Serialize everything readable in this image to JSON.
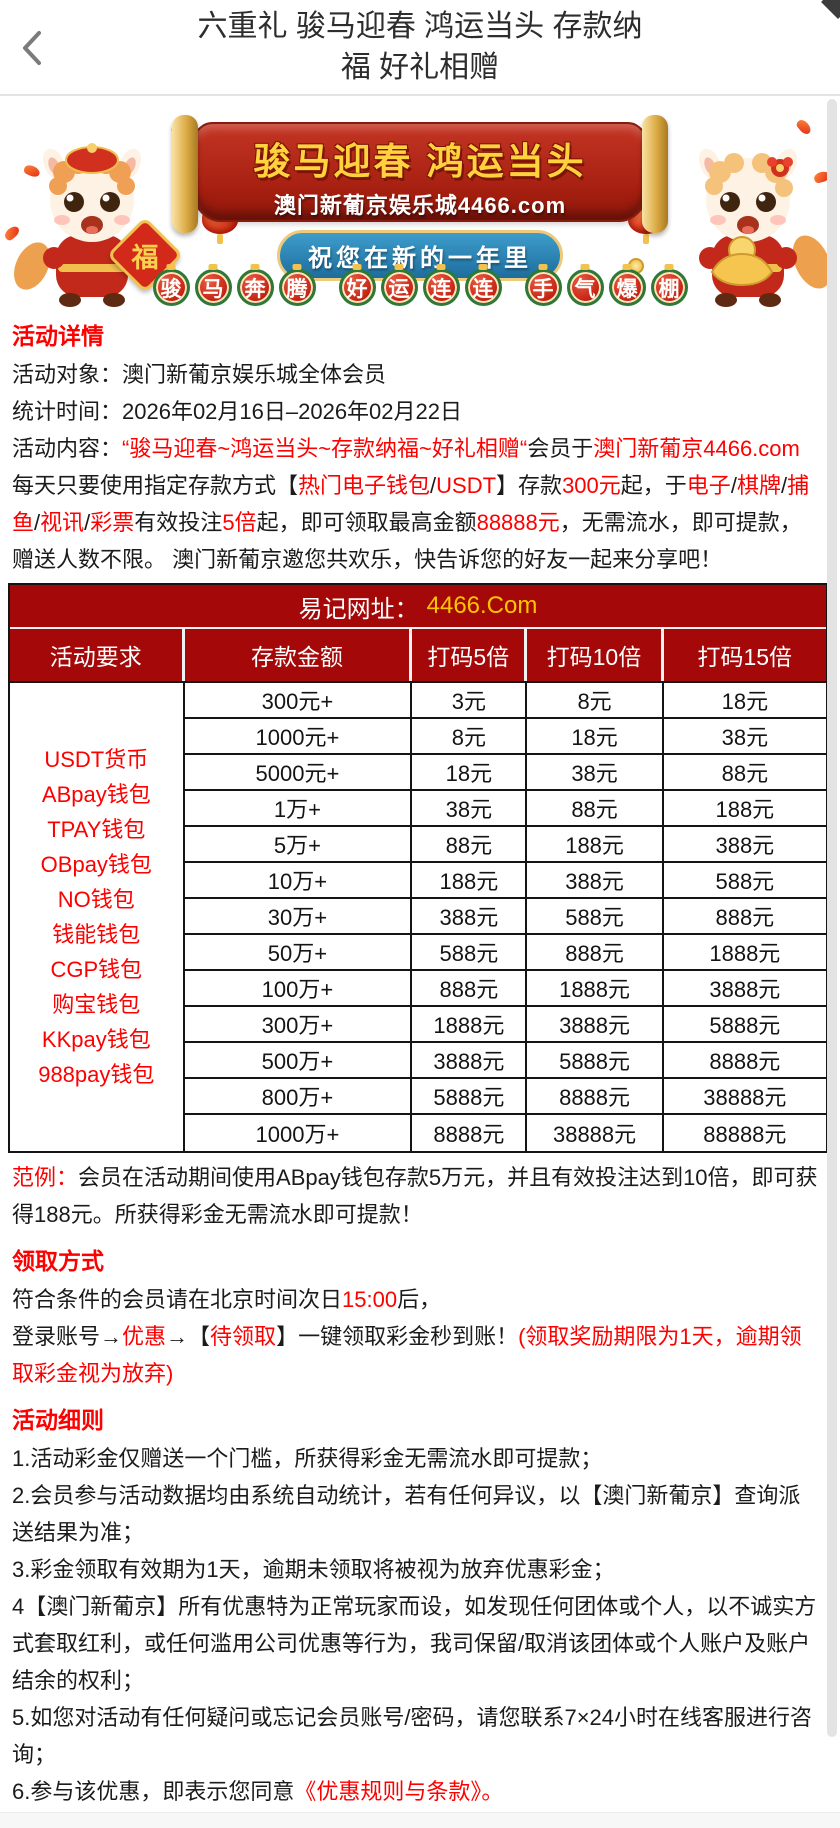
{
  "header": {
    "title": "六重礼 骏马迎春 鸿运当头 存款纳福 好礼相赠",
    "back_icon": "chevron-left"
  },
  "banner": {
    "scroll_title": "骏马迎春 鸿运当头",
    "scroll_subtitle": "澳门新葡京娱乐城4466.com",
    "ribbon": "祝您在新的一年里",
    "fu_char": "福",
    "badges": [
      "骏",
      "马",
      "奔",
      "腾",
      "好",
      "运",
      "连",
      "连",
      "手",
      "气",
      "爆",
      "棚"
    ]
  },
  "details": {
    "heading": "活动详情",
    "line_object": [
      {
        "t": "活动对象：澳门新葡京娱乐城全体会员",
        "c": "k"
      }
    ],
    "line_time": [
      {
        "t": "统计时间：2026年02月16日–2026年02月22日",
        "c": "k"
      }
    ],
    "line_content": [
      {
        "t": "活动内容：",
        "c": "k"
      },
      {
        "t": "“骏马迎春~鸿运当头~存款纳福~好礼相赠“",
        "c": "r"
      },
      {
        "t": "会员于",
        "c": "k"
      },
      {
        "t": "澳门新葡京4466.com",
        "c": "r"
      },
      {
        "t": "每天只要使用指定存款方式【",
        "c": "k"
      },
      {
        "t": "热门电子钱包",
        "c": "r"
      },
      {
        "t": "/",
        "c": "k"
      },
      {
        "t": "USDT",
        "c": "r"
      },
      {
        "t": "】存款",
        "c": "k"
      },
      {
        "t": "300元",
        "c": "r"
      },
      {
        "t": "起，于",
        "c": "k"
      },
      {
        "t": "电子",
        "c": "r"
      },
      {
        "t": "/",
        "c": "k"
      },
      {
        "t": "棋牌",
        "c": "r"
      },
      {
        "t": "/",
        "c": "k"
      },
      {
        "t": "捕鱼",
        "c": "r"
      },
      {
        "t": "/",
        "c": "k"
      },
      {
        "t": "视讯",
        "c": "r"
      },
      {
        "t": "/",
        "c": "k"
      },
      {
        "t": "彩票",
        "c": "r"
      },
      {
        "t": "有效投注",
        "c": "k"
      },
      {
        "t": "5倍",
        "c": "r"
      },
      {
        "t": "起，即可领取最高金额",
        "c": "k"
      },
      {
        "t": "88888元",
        "c": "r"
      },
      {
        "t": "，无需流水，即可提款，赠送人数不限。 澳门新葡京邀您共欢乐，快告诉您的好友一起来分享吧！",
        "c": "k"
      }
    ]
  },
  "table": {
    "band_label": "易记网址：",
    "band_url": "4466.Com",
    "headers": [
      "活动要求",
      "存款金额",
      "打码5倍",
      "打码10倍",
      "打码15倍"
    ],
    "wallets": [
      "USDT货币",
      "ABpay钱包",
      "TPAY钱包",
      "OBpay钱包",
      "NO钱包",
      "钱能钱包",
      "CGP钱包",
      "购宝钱包",
      "KKpay钱包",
      "988pay钱包"
    ],
    "rows": [
      [
        "300元+",
        "3元",
        "8元",
        "18元"
      ],
      [
        "1000元+",
        "8元",
        "18元",
        "38元"
      ],
      [
        "5000元+",
        "18元",
        "38元",
        "88元"
      ],
      [
        "1万+",
        "38元",
        "88元",
        "188元"
      ],
      [
        "5万+",
        "88元",
        "188元",
        "388元"
      ],
      [
        "10万+",
        "188元",
        "388元",
        "588元"
      ],
      [
        "30万+",
        "388元",
        "588元",
        "888元"
      ],
      [
        "50万+",
        "588元",
        "888元",
        "1888元"
      ],
      [
        "100万+",
        "888元",
        "1888元",
        "3888元"
      ],
      [
        "300万+",
        "1888元",
        "3888元",
        "5888元"
      ],
      [
        "500万+",
        "3888元",
        "5888元",
        "8888元"
      ],
      [
        "800万+",
        "5888元",
        "8888元",
        "38888元"
      ],
      [
        "1000万+",
        "8888元",
        "38888元",
        "88888元"
      ]
    ]
  },
  "example": {
    "segments": [
      {
        "t": "范例：",
        "c": "r"
      },
      {
        "t": "会员在活动期间使用ABpay钱包存款5万元，并且有效投注达到10倍，即可获得188元。所获得彩金无需流水即可提款！",
        "c": "k"
      }
    ]
  },
  "claim": {
    "heading": "领取方式",
    "line1": [
      {
        "t": "符合条件的会员请在北京时间次日",
        "c": "k"
      },
      {
        "t": "15:00",
        "c": "r"
      },
      {
        "t": "后，",
        "c": "k"
      }
    ],
    "line2": [
      {
        "t": "登录账号→",
        "c": "k"
      },
      {
        "t": "优惠",
        "c": "r"
      },
      {
        "t": "→【",
        "c": "k"
      },
      {
        "t": "待领取",
        "c": "r"
      },
      {
        "t": "】一键领取彩金秒到账！",
        "c": "k"
      },
      {
        "t": "(领取奖励期限为1天，逾期领取彩金视为放弃)",
        "c": "r"
      }
    ]
  },
  "rules": {
    "heading": "活动细则",
    "items": [
      [
        {
          "t": "1.活动彩金仅赠送一个门槛，所获得彩金无需流水即可提款；",
          "c": "k"
        }
      ],
      [
        {
          "t": "2.会员参与活动数据均由系统自动统计，若有任何异议，以【澳门新葡京】查询派送结果为准；",
          "c": "k"
        }
      ],
      [
        {
          "t": "3.彩金领取有效期为1天，逾期未领取将被视为放弃优惠彩金；",
          "c": "k"
        }
      ],
      [
        {
          "t": "4【澳门新葡京】所有优惠特为正常玩家而设，如发现任何团体或个人，以不诚实方式套取红利，或任何滥用公司优惠等行为，我司保留/取消该团体或个人账户及账户结余的权利；",
          "c": "k"
        }
      ],
      [
        {
          "t": "5.如您对活动有任何疑问或忘记会员账号/密码，请您联系7×24小时在线客服进行咨询；",
          "c": "k"
        }
      ],
      [
        {
          "t": "6.参与该优惠，即表示您同意",
          "c": "k"
        },
        {
          "t": "《优惠规则与条款》",
          "c": "r"
        },
        {
          "t": "。",
          "c": "r"
        }
      ]
    ]
  },
  "colors": {
    "accent_red": "#fe0000",
    "table_header_red": "#a40808",
    "gold_url": "#ffc600",
    "badge_green": "#2c7a35"
  }
}
